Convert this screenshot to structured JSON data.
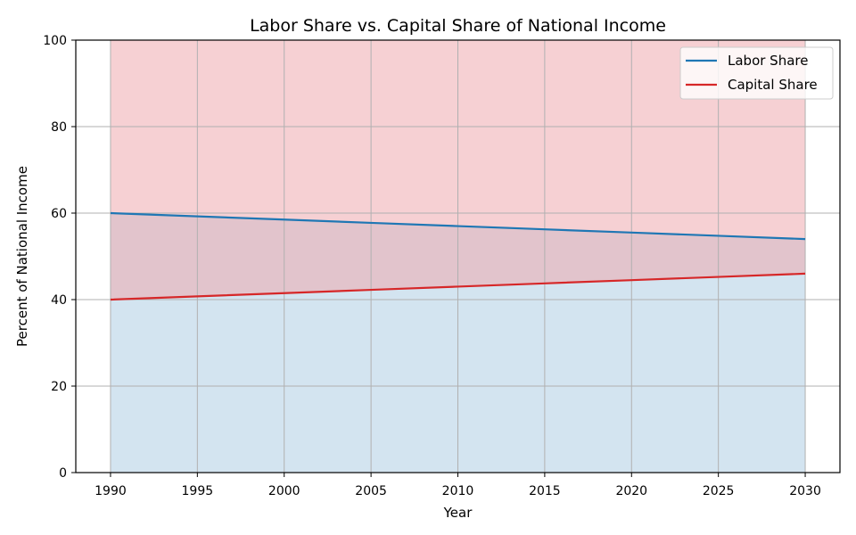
{
  "chart_data": {
    "type": "area",
    "title": "Labor Share vs. Capital Share of National Income",
    "xlabel": "Year",
    "ylabel": "Percent of National Income",
    "x": [
      1990,
      1995,
      2000,
      2005,
      2010,
      2015,
      2020,
      2025,
      2030
    ],
    "xticks": [
      1990,
      1995,
      2000,
      2005,
      2010,
      2015,
      2020,
      2025,
      2030
    ],
    "yticks": [
      0,
      20,
      40,
      60,
      80,
      100
    ],
    "xlim": [
      1988,
      2032
    ],
    "ylim": [
      0,
      100
    ],
    "grid": true,
    "legend_position": "top-right",
    "series": [
      {
        "name": "Labor Share",
        "color": "#1f77b4",
        "fill_color": "#aecde3",
        "values": [
          60,
          59.25,
          58.5,
          57.75,
          57,
          56.25,
          55.5,
          54.75,
          54
        ]
      },
      {
        "name": "Capital Share",
        "color": "#d62728",
        "fill_color": "#eea9ae",
        "values": [
          40,
          40.75,
          41.5,
          42.25,
          43,
          43.75,
          44.5,
          45.25,
          46
        ]
      }
    ]
  }
}
